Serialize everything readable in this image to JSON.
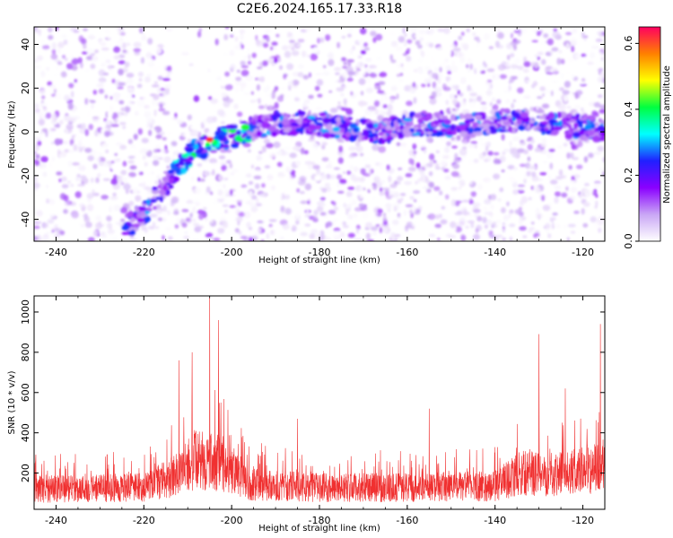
{
  "title": "C2E6.2024.165.17.33.R18",
  "chart_data": [
    {
      "type": "heatmap",
      "xlabel": "Height of straight line (km)",
      "ylabel": "Frequency (Hz)",
      "xlim": [
        -245,
        -115
      ],
      "ylim": [
        -50,
        48
      ],
      "x_ticks": [
        -240,
        -220,
        -200,
        -180,
        -160,
        -140,
        -120
      ],
      "x_tick_labels": [
        "-240",
        "-220",
        "-200",
        "-180",
        "-160",
        "-140",
        "-120"
      ],
      "y_ticks": [
        -40,
        -20,
        0,
        20,
        40
      ],
      "y_tick_labels": [
        "-40",
        "-20",
        "0",
        "20",
        "40"
      ],
      "ridge": [
        {
          "x": -224,
          "y": -43
        },
        {
          "x": -220,
          "y": -37
        },
        {
          "x": -216,
          "y": -27
        },
        {
          "x": -212,
          "y": -15
        },
        {
          "x": -208,
          "y": -8
        },
        {
          "x": -204,
          "y": -4
        },
        {
          "x": -200,
          "y": -2
        },
        {
          "x": -196,
          "y": 1
        },
        {
          "x": -190,
          "y": 4
        },
        {
          "x": -182,
          "y": 4
        },
        {
          "x": -174,
          "y": 2
        },
        {
          "x": -166,
          "y": 0
        },
        {
          "x": -160,
          "y": 3
        },
        {
          "x": -154,
          "y": 4
        },
        {
          "x": -148,
          "y": 2
        },
        {
          "x": -140,
          "y": 5
        },
        {
          "x": -132,
          "y": 5
        },
        {
          "x": -124,
          "y": 3
        },
        {
          "x": -118,
          "y": 2
        },
        {
          "x": -115,
          "y": 0
        }
      ],
      "peak": {
        "x": -205,
        "y": -3.5,
        "amplitude": 0.62
      },
      "colorbar": {
        "label": "Normalized spectral amplitude",
        "range": [
          0,
          0.65
        ],
        "ticks": [
          0.0,
          0.2,
          0.4,
          0.6
        ],
        "tick_labels": [
          "0.0",
          "0.2",
          "0.4",
          "0.6"
        ],
        "colors": [
          "#ffffff",
          "#c9a6f5",
          "#8a00ff",
          "#2020ff",
          "#00ffff",
          "#00ff40",
          "#ffff00",
          "#ff8000",
          "#ff0060"
        ]
      }
    },
    {
      "type": "line",
      "xlabel": "Height of straight line (km)",
      "ylabel": "SNR (10 * v/v)",
      "xlim": [
        -245,
        -115
      ],
      "ylim": [
        20,
        1080
      ],
      "x_ticks": [
        -240,
        -220,
        -200,
        -180,
        -160,
        -140,
        -120
      ],
      "x_tick_labels": [
        "-240",
        "-220",
        "-200",
        "-180",
        "-160",
        "-140",
        "-120"
      ],
      "y_ticks": [
        200,
        400,
        600,
        800,
        1000
      ],
      "y_tick_labels": [
        "200",
        "400",
        "600",
        "800",
        "1000"
      ],
      "color": "#f03030",
      "baseline": {
        "x": [
          -245,
          -220,
          -214,
          -208,
          -203,
          -196,
          -180,
          -160,
          -140,
          -134,
          -126,
          -118,
          -115
        ],
        "y": [
          150,
          160,
          220,
          330,
          310,
          180,
          160,
          160,
          170,
          250,
          240,
          270,
          300
        ]
      },
      "peaks": [
        {
          "x": -212,
          "y": 760
        },
        {
          "x": -209,
          "y": 800
        },
        {
          "x": -205,
          "y": 1080
        },
        {
          "x": -203,
          "y": 960
        },
        {
          "x": -185,
          "y": 470
        },
        {
          "x": -155,
          "y": 520
        },
        {
          "x": -130,
          "y": 890
        },
        {
          "x": -124,
          "y": 620
        },
        {
          "x": -116,
          "y": 940
        }
      ]
    }
  ]
}
